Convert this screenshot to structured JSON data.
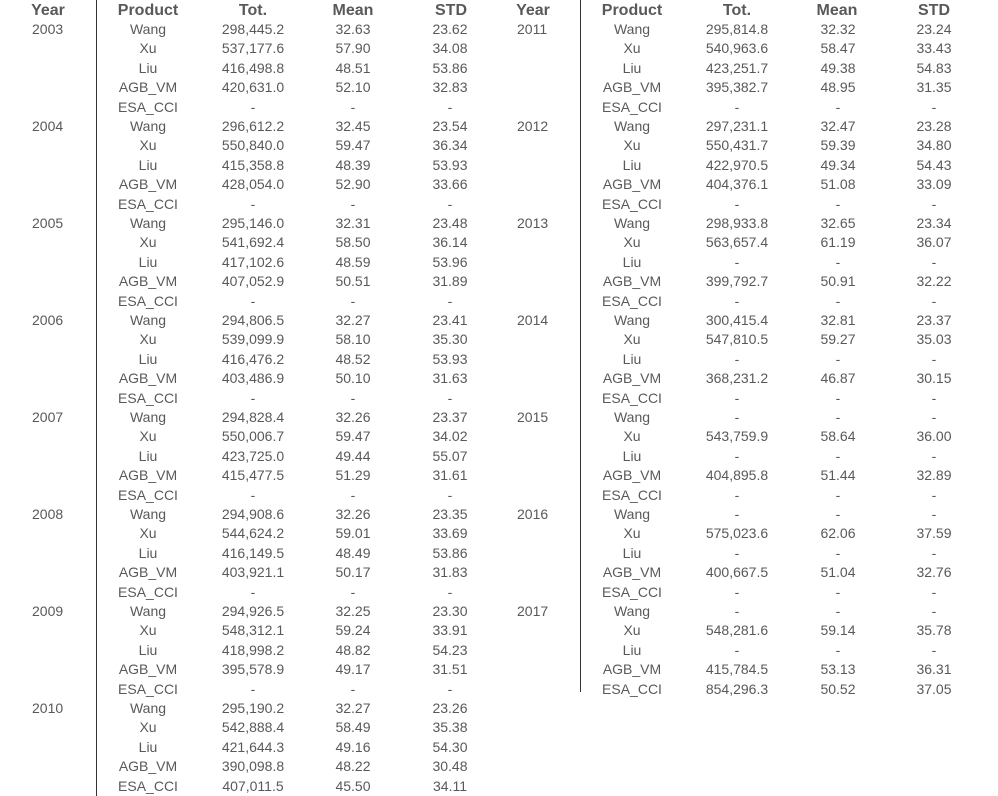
{
  "headers": {
    "year": "Year",
    "product": "Product",
    "total": "Tot.",
    "mean": "Mean",
    "std": "STD"
  },
  "left": [
    {
      "year": "2003",
      "rows": [
        {
          "product": "Wang",
          "tot": "298,445.2",
          "mean": "32.63",
          "std": "23.62"
        },
        {
          "product": "Xu",
          "tot": "537,177.6",
          "mean": "57.90",
          "std": "34.08"
        },
        {
          "product": "Liu",
          "tot": "416,498.8",
          "mean": "48.51",
          "std": "53.86"
        },
        {
          "product": "AGB_VM",
          "tot": "420,631.0",
          "mean": "52.10",
          "std": "32.83"
        },
        {
          "product": "ESA_CCI",
          "tot": "-",
          "mean": "-",
          "std": "-"
        }
      ]
    },
    {
      "year": "2004",
      "rows": [
        {
          "product": "Wang",
          "tot": "296,612.2",
          "mean": "32.45",
          "std": "23.54"
        },
        {
          "product": "Xu",
          "tot": "550,840.0",
          "mean": "59.47",
          "std": "36.34"
        },
        {
          "product": "Liu",
          "tot": "415,358.8",
          "mean": "48.39",
          "std": "53.93"
        },
        {
          "product": "AGB_VM",
          "tot": "428,054.0",
          "mean": "52.90",
          "std": "33.66"
        },
        {
          "product": "ESA_CCI",
          "tot": "-",
          "mean": "-",
          "std": "-"
        }
      ]
    },
    {
      "year": "2005",
      "rows": [
        {
          "product": "Wang",
          "tot": "295,146.0",
          "mean": "32.31",
          "std": "23.48"
        },
        {
          "product": "Xu",
          "tot": "541,692.4",
          "mean": "58.50",
          "std": "36.14"
        },
        {
          "product": "Liu",
          "tot": "417,102.6",
          "mean": "48.59",
          "std": "53.96"
        },
        {
          "product": "AGB_VM",
          "tot": "407,052.9",
          "mean": "50.51",
          "std": "31.89"
        },
        {
          "product": "ESA_CCI",
          "tot": "-",
          "mean": "-",
          "std": "-"
        }
      ]
    },
    {
      "year": "2006",
      "rows": [
        {
          "product": "Wang",
          "tot": "294,806.5",
          "mean": "32.27",
          "std": "23.41"
        },
        {
          "product": "Xu",
          "tot": "539,099.9",
          "mean": "58.10",
          "std": "35.30"
        },
        {
          "product": "Liu",
          "tot": "416,476.2",
          "mean": "48.52",
          "std": "53.93"
        },
        {
          "product": "AGB_VM",
          "tot": "403,486.9",
          "mean": "50.10",
          "std": "31.63"
        },
        {
          "product": "ESA_CCI",
          "tot": "-",
          "mean": "-",
          "std": "-"
        }
      ]
    },
    {
      "year": "2007",
      "rows": [
        {
          "product": "Wang",
          "tot": "294,828.4",
          "mean": "32.26",
          "std": "23.37"
        },
        {
          "product": "Xu",
          "tot": "550,006.7",
          "mean": "59.47",
          "std": "34.02"
        },
        {
          "product": "Liu",
          "tot": "423,725.0",
          "mean": "49.44",
          "std": "55.07"
        },
        {
          "product": "AGB_VM",
          "tot": "415,477.5",
          "mean": "51.29",
          "std": "31.61"
        },
        {
          "product": "ESA_CCI",
          "tot": "-",
          "mean": "-",
          "std": "-"
        }
      ]
    },
    {
      "year": "2008",
      "rows": [
        {
          "product": "Wang",
          "tot": "294,908.6",
          "mean": "32.26",
          "std": "23.35"
        },
        {
          "product": "Xu",
          "tot": "544,624.2",
          "mean": "59.01",
          "std": "33.69"
        },
        {
          "product": "Liu",
          "tot": "416,149.5",
          "mean": "48.49",
          "std": "53.86"
        },
        {
          "product": "AGB_VM",
          "tot": "403,921.1",
          "mean": "50.17",
          "std": "31.83"
        },
        {
          "product": "ESA_CCI",
          "tot": "-",
          "mean": "-",
          "std": "-"
        }
      ]
    },
    {
      "year": "2009",
      "rows": [
        {
          "product": "Wang",
          "tot": "294,926.5",
          "mean": "32.25",
          "std": "23.30"
        },
        {
          "product": "Xu",
          "tot": "548,312.1",
          "mean": "59.24",
          "std": "33.91"
        },
        {
          "product": "Liu",
          "tot": "418,998.2",
          "mean": "48.82",
          "std": "54.23"
        },
        {
          "product": "AGB_VM",
          "tot": "395,578.9",
          "mean": "49.17",
          "std": "31.51"
        },
        {
          "product": "ESA_CCI",
          "tot": "-",
          "mean": "-",
          "std": "-"
        }
      ]
    },
    {
      "year": "2010",
      "rows": [
        {
          "product": "Wang",
          "tot": "295,190.2",
          "mean": "32.27",
          "std": "23.26"
        },
        {
          "product": "Xu",
          "tot": "542,888.4",
          "mean": "58.49",
          "std": "35.38"
        },
        {
          "product": "Liu",
          "tot": "421,644.3",
          "mean": "49.16",
          "std": "54.30"
        },
        {
          "product": "AGB_VM",
          "tot": "390,098.8",
          "mean": "48.22",
          "std": "30.48"
        },
        {
          "product": "ESA_CCI",
          "tot": "407,011.5",
          "mean": "45.50",
          "std": "34.11"
        }
      ]
    }
  ],
  "right": [
    {
      "year": "2011",
      "rows": [
        {
          "product": "Wang",
          "tot": "295,814.8",
          "mean": "32.32",
          "std": "23.24"
        },
        {
          "product": "Xu",
          "tot": "540,963.6",
          "mean": "58.47",
          "std": "33.43"
        },
        {
          "product": "Liu",
          "tot": "423,251.7",
          "mean": "49.38",
          "std": "54.83"
        },
        {
          "product": "AGB_VM",
          "tot": "395,382.7",
          "mean": "48.95",
          "std": "31.35"
        },
        {
          "product": "ESA_CCI",
          "tot": "-",
          "mean": "-",
          "std": "-"
        }
      ]
    },
    {
      "year": "2012",
      "rows": [
        {
          "product": "Wang",
          "tot": "297,231.1",
          "mean": "32.47",
          "std": "23.28"
        },
        {
          "product": "Xu",
          "tot": "550,431.7",
          "mean": "59.39",
          "std": "34.80"
        },
        {
          "product": "Liu",
          "tot": "422,970.5",
          "mean": "49.34",
          "std": "54.43"
        },
        {
          "product": "AGB_VM",
          "tot": "404,376.1",
          "mean": "51.08",
          "std": "33.09"
        },
        {
          "product": "ESA_CCI",
          "tot": "-",
          "mean": "-",
          "std": "-"
        }
      ]
    },
    {
      "year": "2013",
      "rows": [
        {
          "product": "Wang",
          "tot": "298,933.8",
          "mean": "32.65",
          "std": "23.34"
        },
        {
          "product": "Xu",
          "tot": "563,657.4",
          "mean": "61.19",
          "std": "36.07"
        },
        {
          "product": "Liu",
          "tot": "-",
          "mean": "-",
          "std": "-"
        },
        {
          "product": "AGB_VM",
          "tot": "399,792.7",
          "mean": "50.91",
          "std": "32.22"
        },
        {
          "product": "ESA_CCI",
          "tot": "-",
          "mean": "-",
          "std": "-"
        }
      ]
    },
    {
      "year": "2014",
      "rows": [
        {
          "product": "Wang",
          "tot": "300,415.4",
          "mean": "32.81",
          "std": "23.37"
        },
        {
          "product": "Xu",
          "tot": "547,810.5",
          "mean": "59.27",
          "std": "35.03"
        },
        {
          "product": "Liu",
          "tot": "-",
          "mean": "-",
          "std": "-"
        },
        {
          "product": "AGB_VM",
          "tot": "368,231.2",
          "mean": "46.87",
          "std": "30.15"
        },
        {
          "product": "ESA_CCI",
          "tot": "-",
          "mean": "-",
          "std": "-"
        }
      ]
    },
    {
      "year": "2015",
      "rows": [
        {
          "product": "Wang",
          "tot": "-",
          "mean": "-",
          "std": "-"
        },
        {
          "product": "Xu",
          "tot": "543,759.9",
          "mean": "58.64",
          "std": "36.00"
        },
        {
          "product": "Liu",
          "tot": "-",
          "mean": "-",
          "std": "-"
        },
        {
          "product": "AGB_VM",
          "tot": "404,895.8",
          "mean": "51.44",
          "std": "32.89"
        },
        {
          "product": "ESA_CCI",
          "tot": "-",
          "mean": "-",
          "std": "-"
        }
      ]
    },
    {
      "year": "2016",
      "rows": [
        {
          "product": "Wang",
          "tot": "-",
          "mean": "-",
          "std": "-"
        },
        {
          "product": "Xu",
          "tot": "575,023.6",
          "mean": "62.06",
          "std": "37.59"
        },
        {
          "product": "Liu",
          "tot": "-",
          "mean": "-",
          "std": "-"
        },
        {
          "product": "AGB_VM",
          "tot": "400,667.5",
          "mean": "51.04",
          "std": "32.76"
        },
        {
          "product": "ESA_CCI",
          "tot": "-",
          "mean": "-",
          "std": "-"
        }
      ]
    },
    {
      "year": "2017",
      "rows": [
        {
          "product": "Wang",
          "tot": "-",
          "mean": "-",
          "std": "-"
        },
        {
          "product": "Xu",
          "tot": "548,281.6",
          "mean": "59.14",
          "std": "35.78"
        },
        {
          "product": "Liu",
          "tot": "-",
          "mean": "-",
          "std": "-"
        },
        {
          "product": "AGB_VM",
          "tot": "415,784.5",
          "mean": "53.13",
          "std": "36.31"
        },
        {
          "product": "ESA_CCI",
          "tot": "854,296.3",
          "mean": "50.52",
          "std": "37.05"
        }
      ]
    }
  ]
}
